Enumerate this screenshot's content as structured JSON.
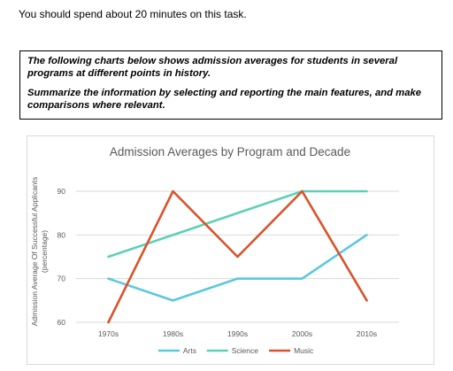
{
  "instruction": "You should spend about 20 minutes on this task.",
  "task": {
    "line1": "The following charts below shows admission averages for students in several programs at different points in history.",
    "line2": "Summarize the information by selecting and reporting the main features, and make comparisons where relevant."
  },
  "chart_data": {
    "type": "line",
    "title": "Admission Averages by Program and Decade",
    "ylabel_line1": "Admission Average Of Successful Applicants",
    "ylabel_line2": "(percentage)",
    "categories": [
      "1970s",
      "1980s",
      "1990s",
      "2000s",
      "2010s"
    ],
    "ylim": [
      60,
      90
    ],
    "yticks": [
      60,
      70,
      80,
      90
    ],
    "grid": true,
    "legend_position": "bottom",
    "series": [
      {
        "name": "Arts",
        "values": [
          70,
          65,
          70,
          70,
          80
        ],
        "color": "#5bc8dc"
      },
      {
        "name": "Science",
        "values": [
          75,
          80,
          85,
          90,
          90
        ],
        "color": "#5fd0b5"
      },
      {
        "name": "Music",
        "values": [
          60,
          90,
          75,
          90,
          65
        ],
        "color": "#d9532c"
      }
    ]
  }
}
